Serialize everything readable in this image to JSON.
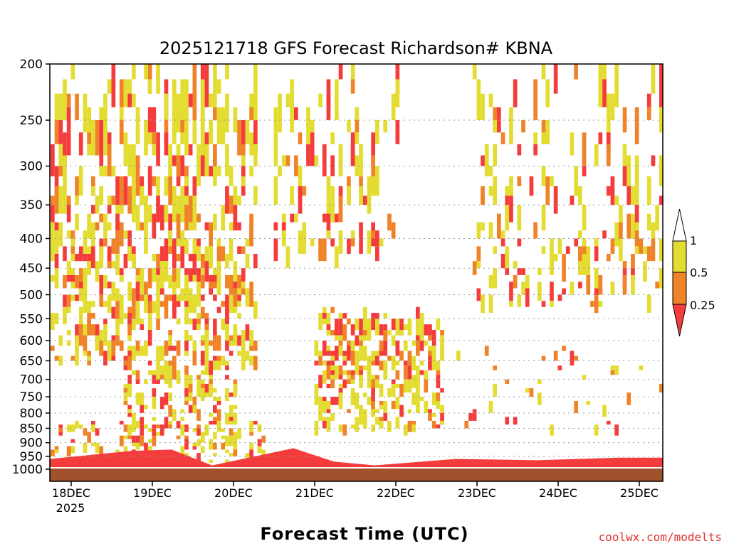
{
  "chart_data": {
    "type": "heatmap",
    "title": "2025121718 GFS Forecast Richardson# KBNA",
    "xlabel": "Forecast Time (UTC)",
    "ylabel": "",
    "y_axis": {
      "scale": "pressure (log)",
      "direction": "inverted",
      "range_hPa": [
        1000,
        200
      ],
      "ticks": [
        "200",
        "250",
        "300",
        "350",
        "400",
        "450",
        "500",
        "550",
        "600",
        "650",
        "700",
        "750",
        "800",
        "850",
        "900",
        "950",
        "1000"
      ]
    },
    "x_axis": {
      "range_days_label": [
        "18DEC",
        "25DEC"
      ],
      "ticks": [
        "18DEC",
        "19DEC",
        "20DEC",
        "21DEC",
        "22DEC",
        "23DEC",
        "24DEC",
        "25DEC"
      ],
      "year_label": "2025"
    },
    "grid": "dotted horizontal at pressure ticks",
    "legend": {
      "placement": "right",
      "labels": [
        "1",
        "0.5",
        "0.25"
      ],
      "bins": [
        {
          "range": "0.5-1",
          "color": "#e3dd32"
        },
        {
          "range": "0.25-0.5",
          "color": "#f08228"
        },
        {
          "range": "<0.25",
          "color": "#f53c3c"
        }
      ]
    },
    "colors": {
      "yellow": "#e3dd32",
      "orange": "#f08228",
      "red": "#f53c3c",
      "ground": "#a0522d"
    },
    "surface_layer_top_hPa": [
      [
        "18DEC",
        960
      ],
      [
        "19DEC",
        930
      ],
      [
        "19DEC12",
        925
      ],
      [
        "20DEC",
        985
      ],
      [
        "21DEC",
        920
      ],
      [
        "21DEC12",
        970
      ],
      [
        "22DEC",
        985
      ],
      [
        "23DEC",
        960
      ],
      [
        "24DEC",
        965
      ],
      [
        "25DEC",
        955
      ]
    ]
  },
  "credit": "coolwx.com/modelts"
}
